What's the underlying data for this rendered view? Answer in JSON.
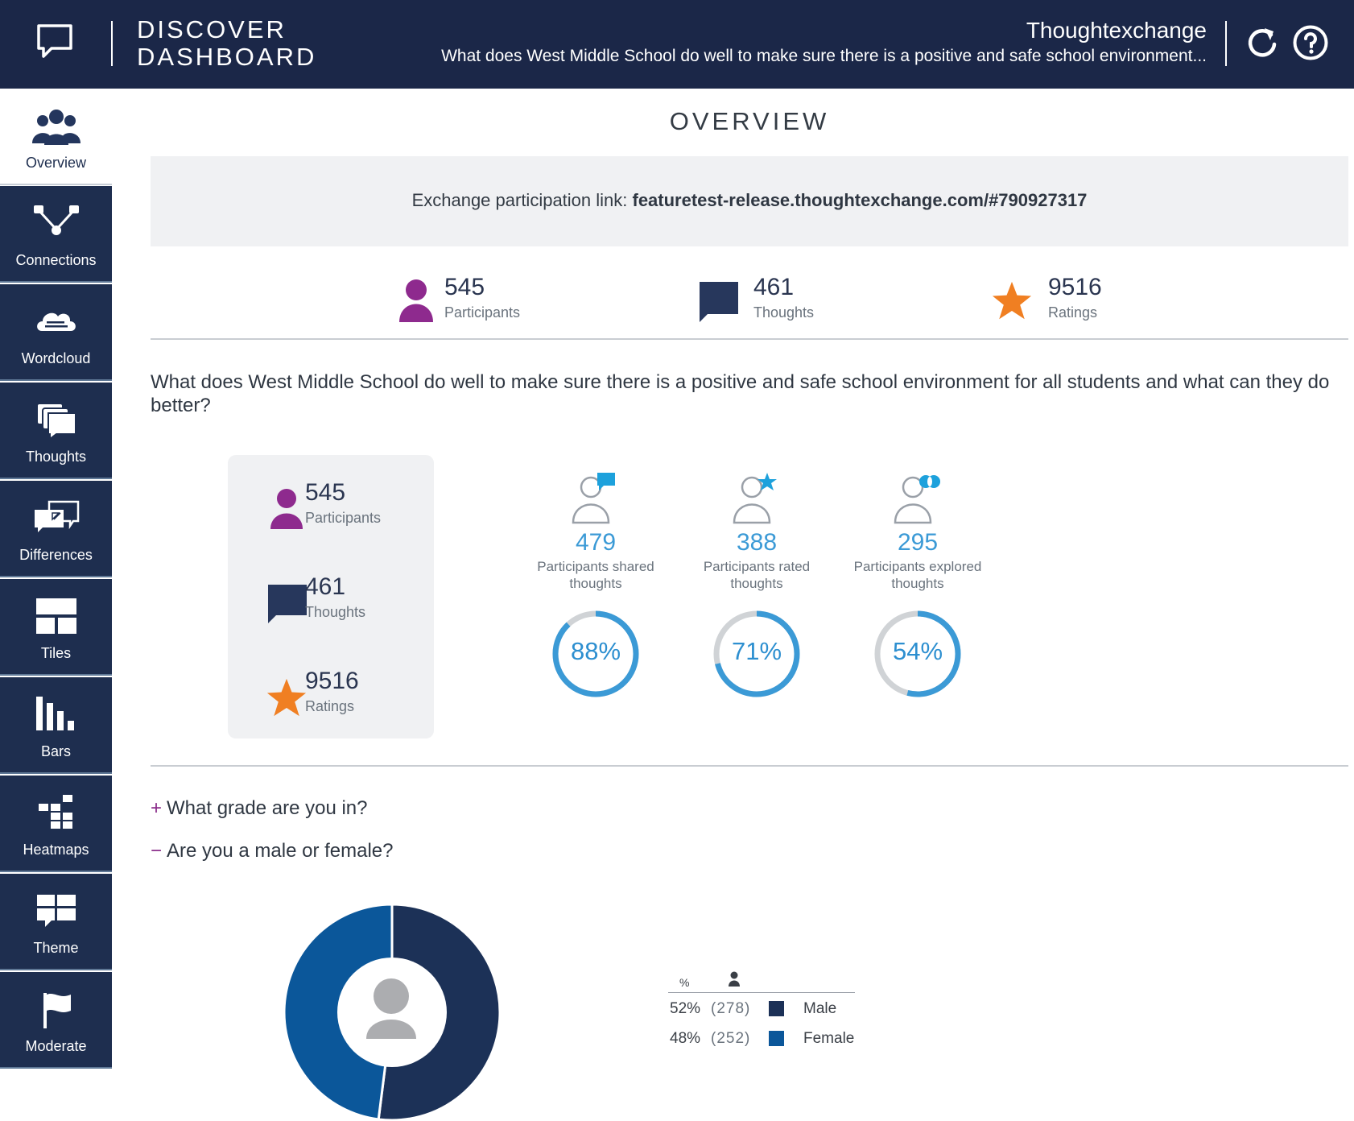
{
  "header": {
    "app_title_line1": "DISCOVER",
    "app_title_line2": "DASHBOARD",
    "exchange_name": "Thoughtexchange",
    "exchange_question_short": "What does West Middle School do well to make sure there is a positive and safe school environment...",
    "icons": [
      "chat-logo-icon",
      "refresh-icon",
      "help-icon"
    ]
  },
  "sidebar": {
    "items": [
      {
        "label": "Overview",
        "icon": "people-icon",
        "active": true
      },
      {
        "label": "Connections",
        "icon": "connections-icon",
        "active": false
      },
      {
        "label": "Wordcloud",
        "icon": "wordcloud-icon",
        "active": false
      },
      {
        "label": "Thoughts",
        "icon": "thoughts-icon",
        "active": false
      },
      {
        "label": "Differences",
        "icon": "differences-icon",
        "active": false
      },
      {
        "label": "Tiles",
        "icon": "tiles-icon",
        "active": false
      },
      {
        "label": "Bars",
        "icon": "bars-icon",
        "active": false
      },
      {
        "label": "Heatmaps",
        "icon": "heatmaps-icon",
        "active": false
      },
      {
        "label": "Theme",
        "icon": "theme-icon",
        "active": false
      },
      {
        "label": "Moderate",
        "icon": "flag-icon",
        "active": false
      }
    ]
  },
  "main": {
    "title": "OVERVIEW",
    "link_label": "Exchange participation link: ",
    "link_url": "featuretest-release.thoughtexchange.com/#790927317",
    "stats": [
      {
        "value": "545",
        "label": "Participants",
        "icon": "person-icon",
        "color": "#8e2a8e"
      },
      {
        "value": "461",
        "label": "Thoughts",
        "icon": "speech-bubble-icon",
        "color": "#27375c"
      },
      {
        "value": "9516",
        "label": "Ratings",
        "icon": "star-icon",
        "color": "#f07f22"
      }
    ],
    "question": "What does West Middle School do well to make sure there is a positive and safe school environment for all students and what can they do better?",
    "card_stats": [
      {
        "value": "545",
        "label": "Participants"
      },
      {
        "value": "461",
        "label": "Thoughts"
      },
      {
        "value": "9516",
        "label": "Ratings"
      }
    ],
    "metrics": [
      {
        "value": "479",
        "label_line1": "Participants shared",
        "label_line2": "thoughts",
        "percent_text": "88%",
        "percent": 0.88,
        "icon": "participant-shared-icon"
      },
      {
        "value": "388",
        "label_line1": "Participants rated",
        "label_line2": "thoughts",
        "percent_text": "71%",
        "percent": 0.71,
        "icon": "participant-rated-icon"
      },
      {
        "value": "295",
        "label_line1": "Participants explored",
        "label_line2": "thoughts",
        "percent_text": "54%",
        "percent": 0.54,
        "icon": "participant-explored-icon"
      }
    ],
    "accordions": [
      {
        "sign": "+",
        "label": "What grade are you in?",
        "expanded": false
      },
      {
        "sign": "−",
        "label": "Are you a male or female?",
        "expanded": true
      }
    ],
    "legend": {
      "header_pct": "%",
      "rows": [
        {
          "pct": "52%",
          "count": "(278)",
          "name": "Male",
          "color": "#1c3157"
        },
        {
          "pct": "48%",
          "count": "(252)",
          "name": "Female",
          "color": "#0b579a"
        }
      ]
    }
  },
  "colors": {
    "header_bg": "#1b2748",
    "nav_bg": "#1e2e4f",
    "accent_blue": "#3b9ad6",
    "ring_track": "#d0d3d6"
  },
  "chart_data": {
    "type": "pie",
    "categories": [
      "Male",
      "Female"
    ],
    "values": [
      52,
      48
    ],
    "counts": [
      278,
      252
    ],
    "title": "",
    "donut": true
  }
}
